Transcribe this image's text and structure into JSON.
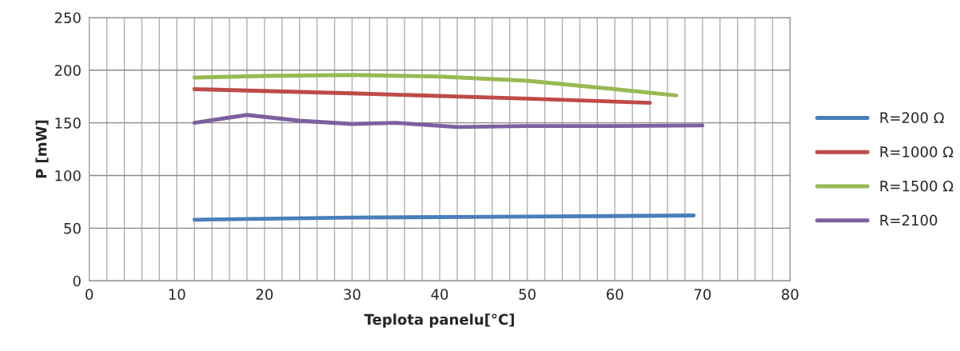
{
  "chart_data": {
    "type": "line",
    "xlabel": "Teplota panelu[°C]",
    "ylabel": "P [mW]",
    "xlim": [
      0,
      80
    ],
    "xticks": [
      0,
      10,
      20,
      30,
      40,
      50,
      60,
      70,
      80
    ],
    "ylim": [
      0,
      250
    ],
    "yticks": [
      0,
      50,
      100,
      150,
      200,
      250
    ],
    "grid": true,
    "legend": "right",
    "marker": "none",
    "line_style": "solid",
    "series": [
      {
        "name": "R=200 Ω",
        "color": "#4a7ebb",
        "x": [
          12,
          30,
          50,
          69
        ],
        "values": [
          58,
          60,
          61,
          62
        ]
      },
      {
        "name": "R=1000 Ω",
        "color": "#be4b48",
        "x": [
          12,
          30,
          50,
          64
        ],
        "values": [
          182,
          178,
          173,
          169
        ]
      },
      {
        "name": "R=1500 Ω",
        "color": "#98b954",
        "x": [
          12,
          20,
          30,
          40,
          50,
          60,
          67
        ],
        "values": [
          193,
          194.5,
          195.5,
          194,
          190,
          182,
          176
        ]
      },
      {
        "name": "R=2100",
        "color": "#7d60a0",
        "x": [
          12,
          18,
          24,
          30,
          35,
          42,
          50,
          60,
          70
        ],
        "values": [
          150,
          157.5,
          152,
          149,
          150,
          146,
          147,
          147,
          147.5
        ]
      }
    ]
  }
}
